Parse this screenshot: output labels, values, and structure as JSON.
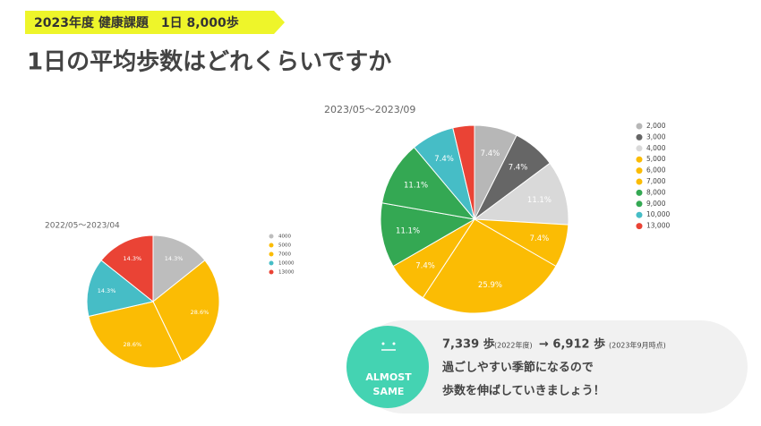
{
  "header": {
    "tag": "2023年度 健康課題　1日 8,000歩",
    "title": "1日の平均歩数はどれくらいですか"
  },
  "chart_data": [
    {
      "type": "pie",
      "title": "2022/05～2023/04",
      "categories": [
        "4000",
        "5000",
        "7000",
        "10000",
        "13000"
      ],
      "values": [
        14.3,
        28.6,
        28.6,
        14.3,
        14.3
      ],
      "value_labels": [
        "14.3%",
        "28.6%",
        "28.6%",
        "14.3%",
        "14.3%"
      ],
      "colors": [
        "#bdbdbd",
        "#fbbc04",
        "#fbbc04",
        "#46bdc6",
        "#ea4335"
      ]
    },
    {
      "type": "pie",
      "title": "2023/05～2023/09",
      "categories": [
        "2,000",
        "3,000",
        "4,000",
        "5,000",
        "6,000",
        "7,000",
        "8,000",
        "9,000",
        "10,000",
        "13,000"
      ],
      "values": [
        7.4,
        7.4,
        11.1,
        7.4,
        25.9,
        7.4,
        11.1,
        11.1,
        7.4,
        3.7
      ],
      "value_labels": [
        "7.4%",
        "7.4%",
        "11.1%",
        "7.4%",
        "25.9%",
        "7.4%",
        "11.1%",
        "11.1%",
        "7.4%",
        null
      ],
      "colors": [
        "#b7b7b7",
        "#666666",
        "#d9d9d9",
        "#fbbc04",
        "#fbbc04",
        "#fbbc04",
        "#34a853",
        "#34a853",
        "#46bdc6",
        "#ea4335"
      ]
    }
  ],
  "callout": {
    "badge": [
      "ALMOST",
      "SAME"
    ],
    "before": "7,339 歩",
    "before_note": "(2022年度)",
    "after": "→ 6,912 歩",
    "after_note": "(2023年9月時点)",
    "line2": "過ごしやすい季節になるので",
    "line3": "歩数を伸ばしていきましょう！"
  }
}
